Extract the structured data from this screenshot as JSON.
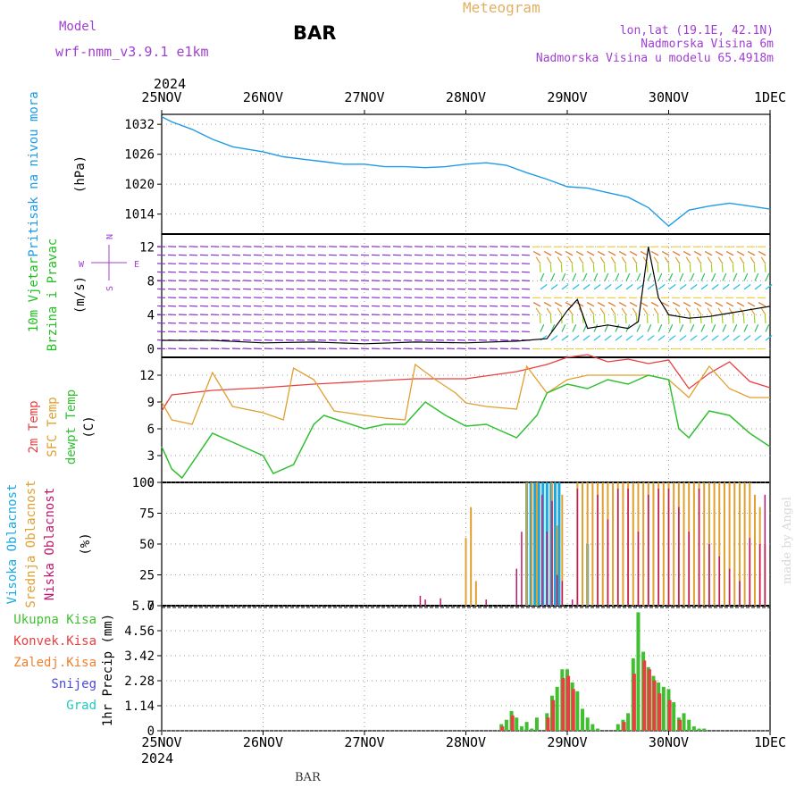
{
  "header": {
    "model_label": "Model",
    "model_name": "wrf-nmm_v3.9.1 e1km",
    "station": "BAR",
    "product": "Meteogram",
    "lonlat": "lon,lat (19.1E, 42.1N)",
    "elevation": "Nadmorska Visina 6m",
    "model_elevation": "Nadmorska Visina u modelu 65.4918m",
    "year": "2024",
    "footer_station": "BAR",
    "credit": "made by Angel"
  },
  "colors": {
    "pressure": "#1e9be6",
    "temp_2m": "#e84040",
    "sfc_temp": "#e0a030",
    "dewpoint": "#30c030",
    "wind_label": "#20c020",
    "compass": "#a040d0",
    "cloud_high": "#18a8e0",
    "cloud_mid": "#e0a030",
    "cloud_low": "#c0186c",
    "precip_total": "#40c030",
    "precip_conv": "#e84040",
    "precip_frz": "#f08030",
    "precip_snow": "#4848e0",
    "precip_hail": "#20c8c0",
    "header_purple": "#a040d0",
    "header_gold": "#e0b060"
  },
  "compass": {
    "n": "N",
    "s": "S",
    "e": "E",
    "w": "W"
  },
  "chart_data": [
    {
      "type": "line",
      "ylabel": [
        "Pritisak na nivou mora",
        "(hPa)"
      ],
      "x_ticks": [
        "25NOV",
        "26NOV",
        "27NOV",
        "28NOV",
        "29NOV",
        "30NOV",
        "1DEC"
      ],
      "ylim": [
        1010,
        1034
      ],
      "y_ticks": [
        1014,
        1020,
        1026,
        1032
      ],
      "grid": true,
      "series": [
        {
          "name": "Pritisak na nivou mora",
          "x": [
            0,
            0.1,
            0.3,
            0.5,
            0.7,
            1.0,
            1.2,
            1.4,
            1.6,
            1.8,
            2.0,
            2.2,
            2.4,
            2.6,
            2.8,
            3.0,
            3.2,
            3.4,
            3.6,
            3.8,
            4.0,
            4.2,
            4.4,
            4.6,
            4.8,
            5.0,
            5.2,
            5.4,
            5.6,
            5.8,
            6.0
          ],
          "values": [
            1033.5,
            1032.5,
            1031,
            1029,
            1027.5,
            1026.5,
            1025.5,
            1025,
            1024.5,
            1024,
            1024,
            1023.5,
            1023.5,
            1023.3,
            1023.5,
            1024,
            1024.3,
            1023.8,
            1022.3,
            1021,
            1019.5,
            1019.2,
            1018.3,
            1017.4,
            1015.3,
            1011.6,
            1014.8,
            1015.6,
            1016.2,
            1015.6,
            1015
          ]
        }
      ]
    },
    {
      "type": "line",
      "ylabel": [
        "10m Vjetar",
        "Brzina i Pravac",
        "(m/s)"
      ],
      "ylim": [
        -1,
        13.5
      ],
      "y_ticks": [
        0,
        4,
        8,
        12
      ],
      "series": [
        {
          "name": "10m Vjetar Brzina",
          "x": [
            0,
            0.5,
            1.0,
            1.5,
            2.0,
            2.5,
            3.0,
            3.5,
            3.8,
            4.0,
            4.1,
            4.2,
            4.4,
            4.6,
            4.7,
            4.8,
            4.9,
            5.0,
            5.2,
            5.4,
            5.6,
            5.8,
            6.0
          ],
          "values": [
            1,
            1,
            0.7,
            0.8,
            0.6,
            0.8,
            0.7,
            0.9,
            1.2,
            4.5,
            5.8,
            2.4,
            2.8,
            2.4,
            3.2,
            12,
            6,
            4,
            3.6,
            3.8,
            4.2,
            4.6,
            5
          ]
        }
      ]
    },
    {
      "type": "line",
      "ylabel": [
        "2m Temp",
        "SFC Temp",
        "dewpt Temp",
        "(C)"
      ],
      "ylim": [
        0,
        14
      ],
      "y_ticks": [
        0,
        3,
        6,
        9,
        12
      ],
      "series": [
        {
          "name": "2m Temp",
          "x": [
            0,
            0.1,
            0.5,
            1.0,
            1.5,
            2.0,
            2.5,
            3.0,
            3.5,
            3.8,
            4.0,
            4.2,
            4.4,
            4.6,
            4.8,
            5.0,
            5.2,
            5.4,
            5.6,
            5.8,
            6.0
          ],
          "values": [
            8,
            9.8,
            10.3,
            10.6,
            11,
            11.3,
            11.6,
            11.6,
            12.4,
            13.2,
            14,
            14.3,
            13.5,
            13.8,
            13.3,
            13.7,
            10.5,
            12.2,
            13.5,
            11.3,
            10.6
          ]
        },
        {
          "name": "SFC Temp",
          "x": [
            0,
            0.1,
            0.3,
            0.5,
            0.7,
            1.0,
            1.2,
            1.3,
            1.5,
            1.7,
            2.0,
            2.2,
            2.4,
            2.5,
            2.7,
            2.9,
            3.0,
            3.2,
            3.5,
            3.6,
            3.8,
            4.0,
            4.2,
            4.4,
            4.6,
            4.8,
            5.0,
            5.2,
            5.4,
            5.6,
            5.8,
            6.0
          ],
          "values": [
            9,
            7,
            6.5,
            12.3,
            8.5,
            7.8,
            7,
            12.8,
            11.5,
            8,
            7.5,
            7.2,
            7,
            13.2,
            11.5,
            10,
            8.9,
            8.5,
            8.2,
            13,
            10,
            11.5,
            12,
            12,
            12,
            12,
            11.5,
            9.5,
            13,
            10.5,
            9.5,
            9.5
          ]
        },
        {
          "name": "dewpt Temp",
          "x": [
            0,
            0.1,
            0.2,
            0.5,
            0.7,
            1.0,
            1.1,
            1.3,
            1.5,
            1.6,
            2.0,
            2.2,
            2.4,
            2.6,
            2.8,
            3.0,
            3.2,
            3.5,
            3.7,
            3.8,
            4.0,
            4.2,
            4.4,
            4.6,
            4.8,
            5.0,
            5.1,
            5.2,
            5.4,
            5.6,
            5.8,
            6.0
          ],
          "values": [
            4,
            1.5,
            0.5,
            5.5,
            4.5,
            3,
            1,
            2,
            6.5,
            7.5,
            6,
            6.5,
            6.5,
            9,
            7.5,
            6.3,
            6.5,
            5,
            7.5,
            10,
            11,
            10.5,
            11.5,
            11,
            12,
            11.5,
            6,
            5,
            8,
            7.5,
            5.5,
            4
          ]
        }
      ]
    },
    {
      "type": "bar",
      "ylabel": [
        "Visoka Oblacnost",
        "Srednja Oblacnost",
        "Niska Oblacnost",
        "(%)"
      ],
      "ylim": [
        0,
        100
      ],
      "y_ticks": [
        0,
        25,
        50,
        75,
        100
      ],
      "series": [
        {
          "name": "Visoka Oblacnost",
          "x": [
            3.6,
            3.64,
            3.68,
            3.72,
            3.76,
            3.8,
            3.84,
            3.88,
            3.92,
            4.2
          ],
          "values": [
            100,
            100,
            100,
            100,
            100,
            100,
            100,
            100,
            100,
            50
          ]
        },
        {
          "name": "Srednja Oblacnost",
          "x": [
            3.0,
            3.05,
            3.1,
            3.6,
            3.65,
            3.7,
            3.85,
            3.9,
            3.95,
            4.1,
            4.15,
            4.2,
            4.25,
            4.3,
            4.35,
            4.4,
            4.45,
            4.5,
            4.55,
            4.6,
            4.65,
            4.7,
            4.75,
            4.8,
            4.85,
            4.9,
            4.95,
            5.0,
            5.05,
            5.1,
            5.15,
            5.2,
            5.25,
            5.3,
            5.35,
            5.4,
            5.45,
            5.5,
            5.55,
            5.6,
            5.65,
            5.7,
            5.75,
            5.8,
            5.85,
            5.9,
            5.95
          ],
          "values": [
            55,
            80,
            20,
            100,
            100,
            100,
            100,
            65,
            90,
            100,
            100,
            100,
            100,
            100,
            100,
            100,
            100,
            100,
            100,
            100,
            100,
            100,
            100,
            100,
            100,
            100,
            100,
            100,
            100,
            100,
            100,
            100,
            100,
            100,
            100,
            100,
            100,
            100,
            100,
            100,
            100,
            100,
            100,
            100,
            90,
            80,
            50
          ]
        },
        {
          "name": "Niska Oblacnost",
          "x": [
            2.55,
            2.6,
            2.75,
            3.2,
            3.5,
            3.55,
            3.75,
            3.8,
            3.85,
            3.9,
            3.95,
            4.05,
            4.1,
            4.3,
            4.4,
            4.5,
            4.6,
            4.7,
            4.8,
            4.9,
            5.0,
            5.1,
            5.2,
            5.3,
            5.4,
            5.5,
            5.6,
            5.7,
            5.8,
            5.9,
            5.95
          ],
          "values": [
            8,
            5,
            6,
            5,
            30,
            60,
            90,
            60,
            85,
            25,
            20,
            5,
            95,
            90,
            70,
            95,
            95,
            60,
            90,
            95,
            95,
            80,
            60,
            95,
            50,
            40,
            30,
            20,
            55,
            50,
            90
          ]
        }
      ]
    },
    {
      "type": "bar",
      "ylabel": [
        "1hr Precip (mm)"
      ],
      "legend": [
        "Ukupna Kisa",
        "Konvek.Kisa",
        "Zaledj.Kisa",
        "Snijeg",
        "Grad"
      ],
      "ylim": [
        0,
        5.7
      ],
      "y_ticks": [
        0,
        1.14,
        2.28,
        3.42,
        4.56,
        5.7
      ],
      "x_ticks": [
        "25NOV",
        "26NOV",
        "27NOV",
        "28NOV",
        "29NOV",
        "30NOV",
        "1DEC"
      ],
      "grid": true,
      "series": [
        {
          "name": "Ukupna Kisa",
          "x": [
            3.35,
            3.4,
            3.45,
            3.5,
            3.55,
            3.6,
            3.65,
            3.7,
            3.8,
            3.85,
            3.9,
            3.95,
            4.0,
            4.05,
            4.1,
            4.15,
            4.2,
            4.25,
            4.3,
            4.5,
            4.55,
            4.6,
            4.65,
            4.7,
            4.75,
            4.8,
            4.85,
            4.9,
            4.95,
            5.0,
            5.05,
            5.1,
            5.15,
            5.2,
            5.25,
            5.3,
            5.35
          ],
          "values": [
            0.3,
            0.5,
            0.9,
            0.6,
            0.2,
            0.4,
            0.1,
            0.6,
            0.8,
            1.6,
            2.0,
            2.8,
            2.8,
            2.2,
            1.8,
            1.0,
            0.6,
            0.3,
            0.1,
            0.3,
            0.5,
            0.8,
            3.3,
            5.4,
            3.6,
            2.9,
            2.5,
            2.2,
            2.0,
            1.9,
            1.3,
            0.6,
            0.8,
            0.5,
            0.2,
            0.1,
            0.1
          ]
        },
        {
          "name": "Konvek.Kisa",
          "x": [
            3.36,
            3.46,
            3.81,
            3.86,
            3.96,
            4.01,
            4.06,
            4.56,
            4.66,
            4.76,
            4.81,
            4.86,
            4.91,
            5.01,
            5.11
          ],
          "values": [
            0.2,
            0.7,
            0.6,
            1.4,
            2.4,
            2.5,
            1.9,
            0.4,
            2.6,
            3.2,
            2.8,
            2.3,
            1.7,
            1.4,
            0.5
          ]
        }
      ]
    }
  ]
}
